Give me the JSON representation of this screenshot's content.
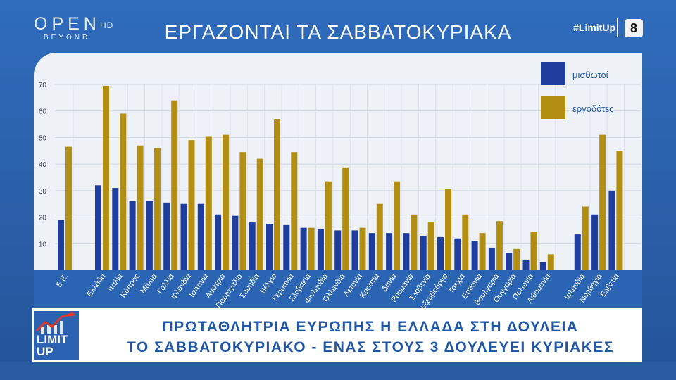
{
  "header": {
    "logo_main": "OPEN",
    "logo_hd": "HD",
    "logo_sub": "BEYOND",
    "title": "ΕΡΓΑΖΟΝΤΑΙ ΤΑ ΣΑΒΒΑΤΟΚΥΡΙΑΚΑ",
    "hashtag": "#LimitUp",
    "channel_number": "8"
  },
  "lower_third": {
    "badge_line1": "LIMIT",
    "badge_line2": "UP",
    "line1": "ΠΡΩΤΑΘΛΗΤΡΙΑ ΕΥΡΩΠΗΣ Η ΕΛΛΑΔΑ ΣΤΗ ΔΟΥΛΕΙΑ",
    "line2": "ΤΟ ΣΑΒΒΑΤΟΚΥΡΙΑΚΟ - ΕΝΑΣ ΣΤΟΥΣ 3 ΔΟΥΛΕΥΕΙ ΚΥΡΙΑΚΕΣ"
  },
  "colors": {
    "employees": "#1f3d9c",
    "employers": "#b28f12",
    "panel": "#eef1f6",
    "label_band": "#2a64b2",
    "headline_text": "#1f57a6"
  },
  "chart_data": {
    "type": "bar",
    "title": "",
    "xlabel": "",
    "ylabel": "",
    "ylim": [
      0,
      70
    ],
    "yticks": [
      10,
      20,
      30,
      40,
      50,
      60,
      70
    ],
    "grid": true,
    "legend_position": "top-right",
    "categories": [
      "Ε.Ε.",
      "Ελλάδα",
      "Ιταλία",
      "Κύπρος",
      "Μάλτα",
      "Γαλλία",
      "Ιρλανδία",
      "Ισπανία",
      "Αυστρία",
      "Πορτογαλία",
      "Σουηδία",
      "Βέλγιο",
      "Γερμανία",
      "Σλοβακία",
      "Φινλανδία",
      "Ολλανδία",
      "Λετονία",
      "Κροατία",
      "Δανία",
      "Ρουμανία",
      "Σλοβενία",
      "Λουξεμβούργο",
      "Τσεχία",
      "Εσθονία",
      "Βουλγαρία",
      "Ουγγαρία",
      "Πολωνία",
      "Λιθουανία",
      "Ισλανδία",
      "Νορβηγία",
      "Ελβετία"
    ],
    "series": [
      {
        "name": "μισθωτοί",
        "color": "#1f3d9c",
        "values": [
          19,
          32,
          31,
          26,
          26,
          25.5,
          25,
          25,
          21,
          20.5,
          18,
          17.5,
          17,
          16,
          15.5,
          15,
          15,
          14,
          14,
          14,
          13,
          12.5,
          12,
          11,
          8.5,
          6.5,
          4,
          3,
          13.5,
          21,
          30
        ]
      },
      {
        "name": "εργοδότες",
        "color": "#b28f12",
        "values": [
          46.5,
          69.5,
          59,
          47,
          46,
          64,
          49,
          50.5,
          51,
          44.5,
          42,
          57,
          44.5,
          16,
          33.5,
          38.5,
          16,
          25,
          33.5,
          21,
          18,
          30.5,
          21,
          14,
          18.5,
          8,
          14.5,
          6,
          24,
          51,
          45
        ]
      }
    ]
  }
}
